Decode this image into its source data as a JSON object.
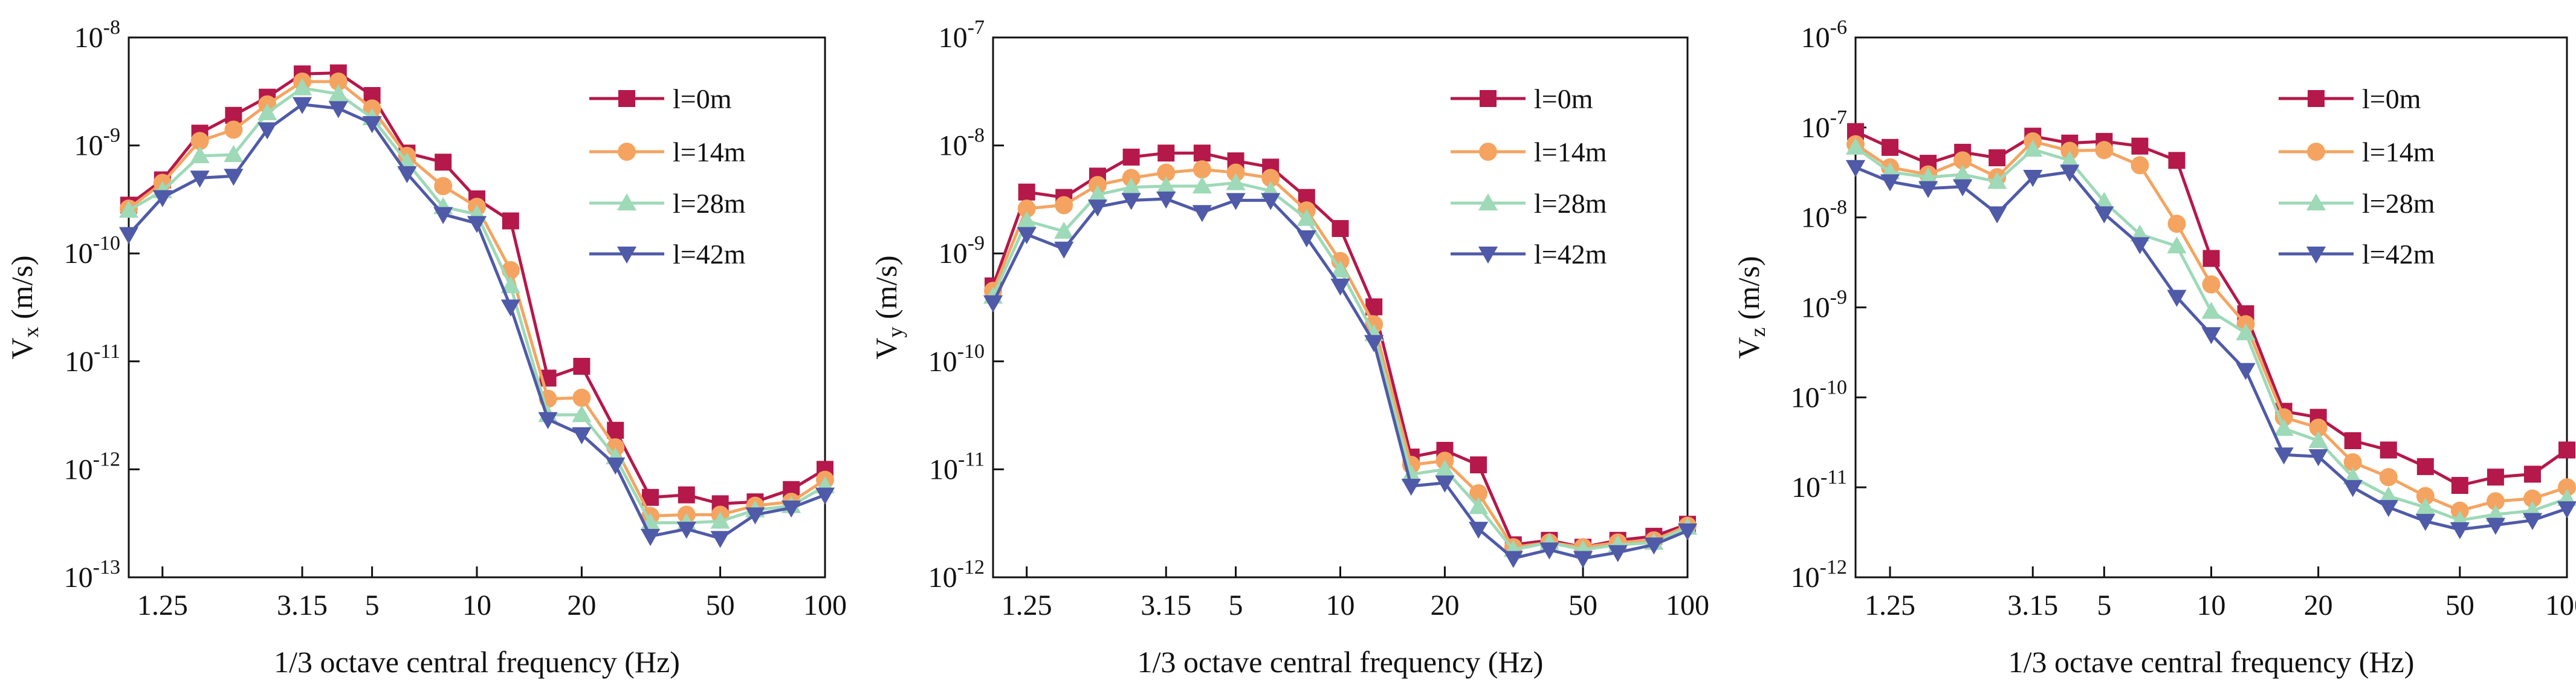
{
  "colors": {
    "l0": "#B5184A",
    "l14": "#F4A460",
    "l28": "#9ED9B8",
    "l42": "#4F5AA8"
  },
  "chart_data": [
    {
      "type": "line",
      "xlabel": "1/3 octave central frequency (Hz)",
      "ylabel": {
        "main": "V",
        "sub": "x",
        "unit": " (m/s)"
      },
      "yexp": [
        -13,
        -8
      ],
      "xticks": [
        "1.25",
        "3.15",
        "5",
        "10",
        "20",
        "50",
        "100"
      ],
      "x": [
        1,
        1.25,
        1.6,
        2,
        2.5,
        3.15,
        4,
        5,
        6.3,
        8,
        10,
        12.5,
        16,
        20,
        25,
        31.5,
        40,
        50,
        63,
        80,
        100
      ],
      "series": [
        {
          "name": "l=0m",
          "marker": "square",
          "color_key": "l0",
          "values": [
            2.8e-10,
            4.8e-10,
            1.3e-09,
            1.9e-09,
            2.8e-09,
            4.6e-09,
            4.7e-09,
            2.9e-09,
            8.5e-10,
            7e-10,
            3.2e-10,
            2e-10,
            7e-12,
            9e-12,
            2.3e-12,
            5.5e-13,
            5.8e-13,
            4.8e-13,
            5e-13,
            6.5e-13,
            1e-12
          ]
        },
        {
          "name": "l=14m",
          "marker": "circle",
          "color_key": "l14",
          "values": [
            2.6e-10,
            4.5e-10,
            1.1e-09,
            1.4e-09,
            2.4e-09,
            3.9e-09,
            3.9e-09,
            2.2e-09,
            8e-10,
            4.2e-10,
            2.7e-10,
            7e-11,
            4.5e-12,
            4.6e-12,
            1.6e-12,
            3.7e-13,
            3.8e-13,
            3.8e-13,
            4.6e-13,
            5e-13,
            8e-13
          ]
        },
        {
          "name": "l=28m",
          "marker": "triangle-up",
          "color_key": "l28",
          "values": [
            2.5e-10,
            3.8e-10,
            8e-10,
            8.2e-10,
            2e-09,
            3.4e-09,
            3e-09,
            1.8e-09,
            7e-10,
            2.7e-10,
            2.3e-10,
            5e-11,
            3.2e-12,
            3.2e-12,
            1.3e-12,
            3.2e-13,
            3.2e-13,
            3.3e-13,
            4.2e-13,
            4.6e-13,
            7e-13
          ]
        },
        {
          "name": "l=42m",
          "marker": "triangle-down",
          "color_key": "l42",
          "values": [
            1.5e-10,
            3.3e-10,
            5e-10,
            5.2e-10,
            1.4e-09,
            2.4e-09,
            2.2e-09,
            1.6e-09,
            5.5e-10,
            2.3e-10,
            1.9e-10,
            3.2e-11,
            2.9e-12,
            2.1e-12,
            1.1e-12,
            2.4e-13,
            2.8e-13,
            2.3e-13,
            3.8e-13,
            4.4e-13,
            5.8e-13
          ]
        }
      ]
    },
    {
      "type": "line",
      "xlabel": "1/3 octave central frequency (Hz)",
      "ylabel": {
        "main": "V",
        "sub": "y",
        "unit": " (m/s)"
      },
      "yexp": [
        -12,
        -7
      ],
      "xticks": [
        "1.25",
        "3.15",
        "5",
        "10",
        "20",
        "50",
        "100"
      ],
      "x": [
        1,
        1.25,
        1.6,
        2,
        2.5,
        3.15,
        4,
        5,
        6.3,
        8,
        10,
        12.5,
        16,
        20,
        25,
        31.5,
        40,
        50,
        63,
        80,
        100
      ],
      "series": [
        {
          "name": "l=0m",
          "marker": "square",
          "color_key": "l0",
          "values": [
            5e-10,
            3.7e-09,
            3.3e-09,
            5.2e-09,
            7.8e-09,
            8.5e-09,
            8.5e-09,
            7.2e-09,
            6.3e-09,
            3.3e-09,
            1.7e-09,
            3.2e-10,
            1.3e-11,
            1.5e-11,
            1.1e-11,
            2e-12,
            2.2e-12,
            1.9e-12,
            2.2e-12,
            2.4e-12,
            3.1e-12
          ]
        },
        {
          "name": "l=14m",
          "marker": "circle",
          "color_key": "l14",
          "values": [
            4.5e-10,
            2.6e-09,
            2.8e-09,
            4.3e-09,
            5e-09,
            5.6e-09,
            6e-09,
            5.6e-09,
            5e-09,
            2.5e-09,
            8.5e-10,
            2.2e-10,
            1.1e-11,
            1.2e-11,
            6e-12,
            1.9e-12,
            2.1e-12,
            1.9e-12,
            2.1e-12,
            2.2e-12,
            3e-12
          ]
        },
        {
          "name": "l=28m",
          "marker": "triangle-up",
          "color_key": "l28",
          "values": [
            4e-10,
            2e-09,
            1.6e-09,
            3.5e-09,
            4.1e-09,
            4.2e-09,
            4.2e-09,
            4.5e-09,
            3.8e-09,
            2.1e-09,
            7e-10,
            1.8e-10,
            9e-12,
            1e-11,
            4.5e-12,
            1.8e-12,
            2.1e-12,
            1.8e-12,
            2e-12,
            2.1e-12,
            2.9e-12
          ]
        },
        {
          "name": "l=42m",
          "marker": "triangle-down",
          "color_key": "l42",
          "values": [
            3.5e-10,
            1.5e-09,
            1.1e-09,
            2.7e-09,
            3.1e-09,
            3.2e-09,
            2.4e-09,
            3.1e-09,
            3.1e-09,
            1.4e-09,
            5e-10,
            1.5e-10,
            7e-12,
            7.5e-12,
            2.8e-12,
            1.5e-12,
            1.8e-12,
            1.5e-12,
            1.7e-12,
            2e-12,
            2.7e-12
          ]
        }
      ]
    },
    {
      "type": "line",
      "xlabel": "1/3 octave central frequency (Hz)",
      "ylabel": {
        "main": "V",
        "sub": "z",
        "unit": " (m/s)"
      },
      "yexp": [
        -12,
        -6
      ],
      "xticks": [
        "1.25",
        "3.15",
        "5",
        "10",
        "20",
        "50",
        "100"
      ],
      "x": [
        1,
        1.25,
        1.6,
        2,
        2.5,
        3.15,
        4,
        5,
        6.3,
        8,
        10,
        12.5,
        16,
        20,
        25,
        31.5,
        40,
        50,
        63,
        80,
        100
      ],
      "series": [
        {
          "name": "l=0m",
          "marker": "square",
          "color_key": "l0",
          "values": [
            9e-08,
            6e-08,
            4e-08,
            5.3e-08,
            4.6e-08,
            8e-08,
            6.7e-08,
            7e-08,
            6.2e-08,
            4.3e-08,
            3.5e-09,
            8.5e-10,
            7e-11,
            6e-11,
            3.3e-11,
            2.6e-11,
            1.7e-11,
            1.05e-11,
            1.3e-11,
            1.4e-11,
            2.6e-11
          ]
        },
        {
          "name": "l=14m",
          "marker": "circle",
          "color_key": "l14",
          "values": [
            6.5e-08,
            3.6e-08,
            3e-08,
            4.3e-08,
            2.8e-08,
            7e-08,
            5.5e-08,
            5.6e-08,
            3.8e-08,
            8.5e-09,
            1.8e-09,
            6.5e-10,
            6e-11,
            4.6e-11,
            1.9e-11,
            1.3e-11,
            8e-12,
            5.5e-12,
            7e-12,
            7.5e-12,
            1e-11
          ]
        },
        {
          "name": "l=28m",
          "marker": "triangle-up",
          "color_key": "l28",
          "values": [
            6e-08,
            3.2e-08,
            2.8e-08,
            3e-08,
            2.5e-08,
            5.7e-08,
            4.3e-08,
            1.5e-08,
            6.5e-09,
            4.8e-09,
            9e-10,
            5.2e-10,
            4.5e-11,
            3.3e-11,
            1.3e-11,
            8e-12,
            6e-12,
            4.3e-12,
            5e-12,
            5.5e-12,
            7.5e-12
          ]
        },
        {
          "name": "l=42m",
          "marker": "triangle-down",
          "color_key": "l42",
          "values": [
            3.6e-08,
            2.5e-08,
            2.1e-08,
            2.2e-08,
            1.1e-08,
            2.8e-08,
            3.2e-08,
            1.1e-08,
            5e-09,
            1.3e-09,
            5e-10,
            2e-10,
            2.3e-11,
            2.2e-11,
            1e-11,
            6e-12,
            4.2e-12,
            3.4e-12,
            3.8e-12,
            4.3e-12,
            5.8e-12
          ]
        }
      ]
    }
  ]
}
